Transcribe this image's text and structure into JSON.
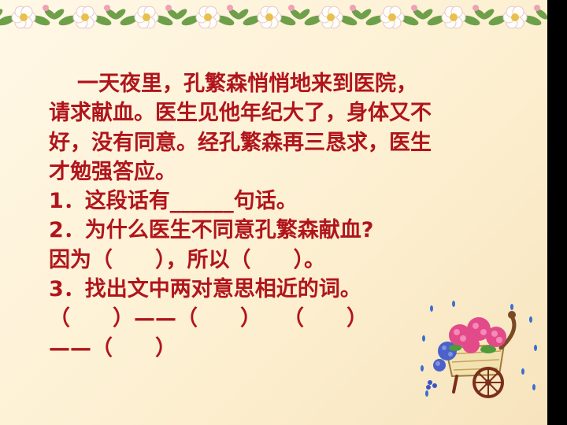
{
  "passage": {
    "lines": [
      "一天夜里，孔繁森悄悄地来到医院，",
      "请求献血。医生见他年纪大了，身体又不",
      "好，没有同意。经孔繁森再三恳求，医生",
      "才勉强答应。"
    ]
  },
  "questions": {
    "q1": "1．这段话有______句话。",
    "q2": "2．为什么医生不同意孔繁森献血?",
    "q2_answer": "因为（　　），所以（　　）。",
    "q3": "3．找出文中两对意思相近的词。",
    "q3_line1": "（　　）——（　　）　　（　　）",
    "q3_line2": "——（　　）"
  },
  "colors": {
    "text": "#b0151c",
    "background": "#fdf0d2",
    "page_edge": "#000000"
  },
  "decorations": {
    "top_border": "flower-garland",
    "corner_art": "flower-cart-with-rain"
  }
}
